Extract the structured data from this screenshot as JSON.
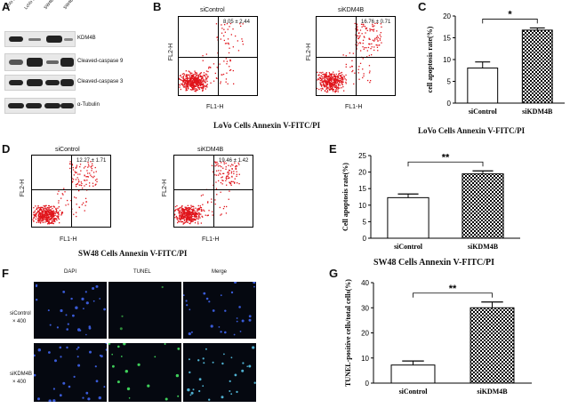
{
  "panels": {
    "A": {
      "letter": "A",
      "lanes": [
        "LoVo siControl",
        "LoVo siKDM4B",
        "SW48 siControl",
        "SW48 siKDM4B"
      ],
      "proteins": [
        "KDM4B",
        "Cleaved-caspase 9",
        "Cleaved-caspase 3",
        "α-Tubulin"
      ]
    },
    "B": {
      "letter": "B",
      "left_title": "siControl",
      "right_title": "siKDM4B",
      "left_stat": "8.05 ± 2.44",
      "right_stat": "16.76 ± 0.71",
      "xlabel": "FL1-H",
      "ylabel": "FL2-H",
      "caption": "LoVo Cells Annexin V-FITC/PI"
    },
    "C": {
      "letter": "C",
      "caption": "LoVo Cells Annexin V-FITC/PI",
      "sig": "*"
    },
    "D": {
      "letter": "D",
      "left_title": "siControl",
      "right_title": "siKDM4B",
      "left_stat": "12.27 ± 1.71",
      "right_stat": "19.46 ± 1.42",
      "xlabel": "FL1-H",
      "ylabel": "FL2-H",
      "caption": "SW48 Cells Annexin V-FITC/PI"
    },
    "E": {
      "letter": "E",
      "caption": "SW48 Cells Annexin V-FITC/PI",
      "sig": "**"
    },
    "F": {
      "letter": "F",
      "cols": [
        "DAPI",
        "TUNEL",
        "Merge"
      ],
      "row1": "siControl",
      "row1b": "× 400",
      "row2": "siKDM4B",
      "row2b": "× 400"
    },
    "G": {
      "letter": "G",
      "sig": "**"
    }
  },
  "chart_data": [
    {
      "type": "bar",
      "panel": "C",
      "categories": [
        "siControl",
        "siKDM4B"
      ],
      "values": [
        8.05,
        16.76
      ],
      "errors": [
        1.4,
        0.5
      ],
      "ylabel": "cell apoptosis rate(%)",
      "ylim": [
        0,
        20
      ],
      "yticks": [
        "0",
        "5",
        "10",
        "15",
        "20"
      ],
      "colors": [
        "#ffffff",
        "checker"
      ]
    },
    {
      "type": "bar",
      "panel": "E",
      "categories": [
        "siControl",
        "siKDM4B"
      ],
      "values": [
        12.27,
        19.46
      ],
      "errors": [
        1.1,
        0.9
      ],
      "ylabel": "Cell apoptosis rate(%)",
      "ylim": [
        0,
        25
      ],
      "yticks": [
        "0",
        "5",
        "10",
        "15",
        "20",
        "25"
      ],
      "colors": [
        "#ffffff",
        "checker"
      ]
    },
    {
      "type": "bar",
      "panel": "G",
      "categories": [
        "siControl",
        "siKDM4B"
      ],
      "values": [
        7.2,
        30.0
      ],
      "errors": [
        1.6,
        2.3
      ],
      "ylabel": "TUNEL-positive cells/total cells(%)",
      "ylim": [
        0,
        40
      ],
      "yticks": [
        "0",
        "10",
        "20",
        "30",
        "40"
      ],
      "colors": [
        "#ffffff",
        "checker"
      ]
    }
  ]
}
